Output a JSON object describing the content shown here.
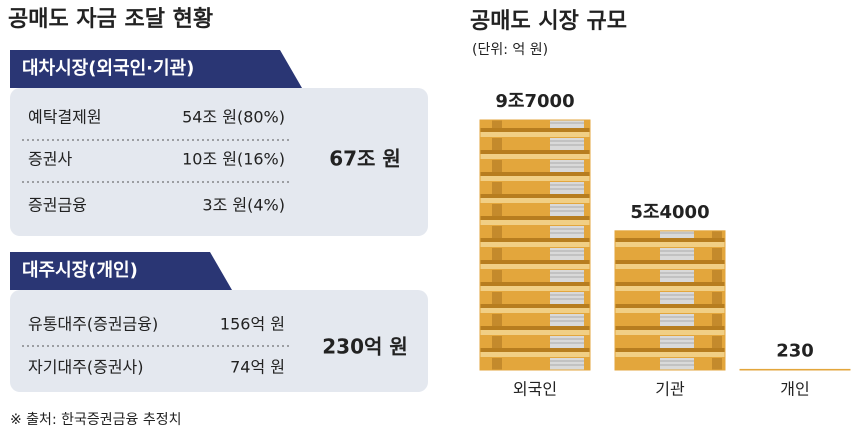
{
  "header": {
    "title": "공매도 자금 조달 현황"
  },
  "sections": [
    {
      "title": "대차시장(외국인·기관)",
      "rows": [
        [
          "예탁결제원",
          "54조 원(80%)"
        ],
        [
          "증권사",
          "10조 원(16%)"
        ],
        [
          "증권금융",
          "3조 원(4%)"
        ]
      ],
      "total": "67조 원"
    },
    {
      "title": "대주시장(개인)",
      "rows": [
        [
          "유통대주(증권금융)",
          "156억 원"
        ],
        [
          "자기대주(증권사)",
          "74억 원"
        ]
      ],
      "total": "230억 원"
    }
  ],
  "source": "※ 출처: 한국증권금융 추정치",
  "chart_data": {
    "type": "bar",
    "title": "공매도 시장 규모",
    "subtitle": "(단위: 억 원)",
    "categories": [
      "외국인",
      "기관",
      "개인"
    ],
    "values": [
      97000,
      54000,
      230
    ],
    "value_labels": [
      "9조7000",
      "5조4000",
      "230"
    ],
    "color": "#e3a63c"
  }
}
